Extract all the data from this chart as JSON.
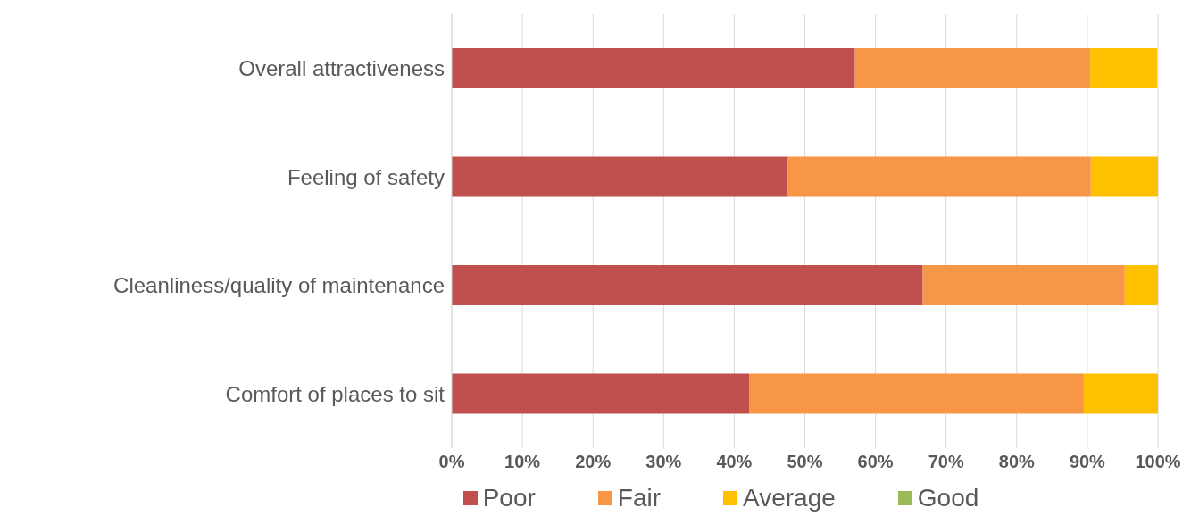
{
  "chart_data": {
    "type": "bar",
    "orientation": "horizontal",
    "stacked": true,
    "categories": [
      "Overall attractiveness",
      "Feeling of safety",
      "Cleanliness/quality of maintenance",
      "Comfort of places to sit"
    ],
    "series": [
      {
        "name": "Poor",
        "color": "#c0504d",
        "values": [
          57.1,
          47.6,
          66.7,
          42.1
        ]
      },
      {
        "name": "Fair",
        "color": "#f79646",
        "values": [
          33.3,
          42.9,
          28.6,
          47.4
        ]
      },
      {
        "name": "Average",
        "color": "#ffc000",
        "values": [
          9.5,
          9.5,
          4.8,
          10.5
        ]
      },
      {
        "name": "Good",
        "color": "#9bbb59",
        "values": [
          0,
          0,
          0,
          0
        ]
      }
    ],
    "xlim": [
      0,
      100
    ],
    "xticks": [
      {
        "value": 0,
        "label": "0%"
      },
      {
        "value": 10,
        "label": "10%"
      },
      {
        "value": 20,
        "label": "20%"
      },
      {
        "value": 30,
        "label": "30%"
      },
      {
        "value": 40,
        "label": "40%"
      },
      {
        "value": 50,
        "label": "50%"
      },
      {
        "value": 60,
        "label": "60%"
      },
      {
        "value": 70,
        "label": "70%"
      },
      {
        "value": 80,
        "label": "80%"
      },
      {
        "value": 90,
        "label": "90%"
      },
      {
        "value": 100,
        "label": "100%"
      }
    ],
    "grid": "x",
    "legend": "bottom"
  }
}
